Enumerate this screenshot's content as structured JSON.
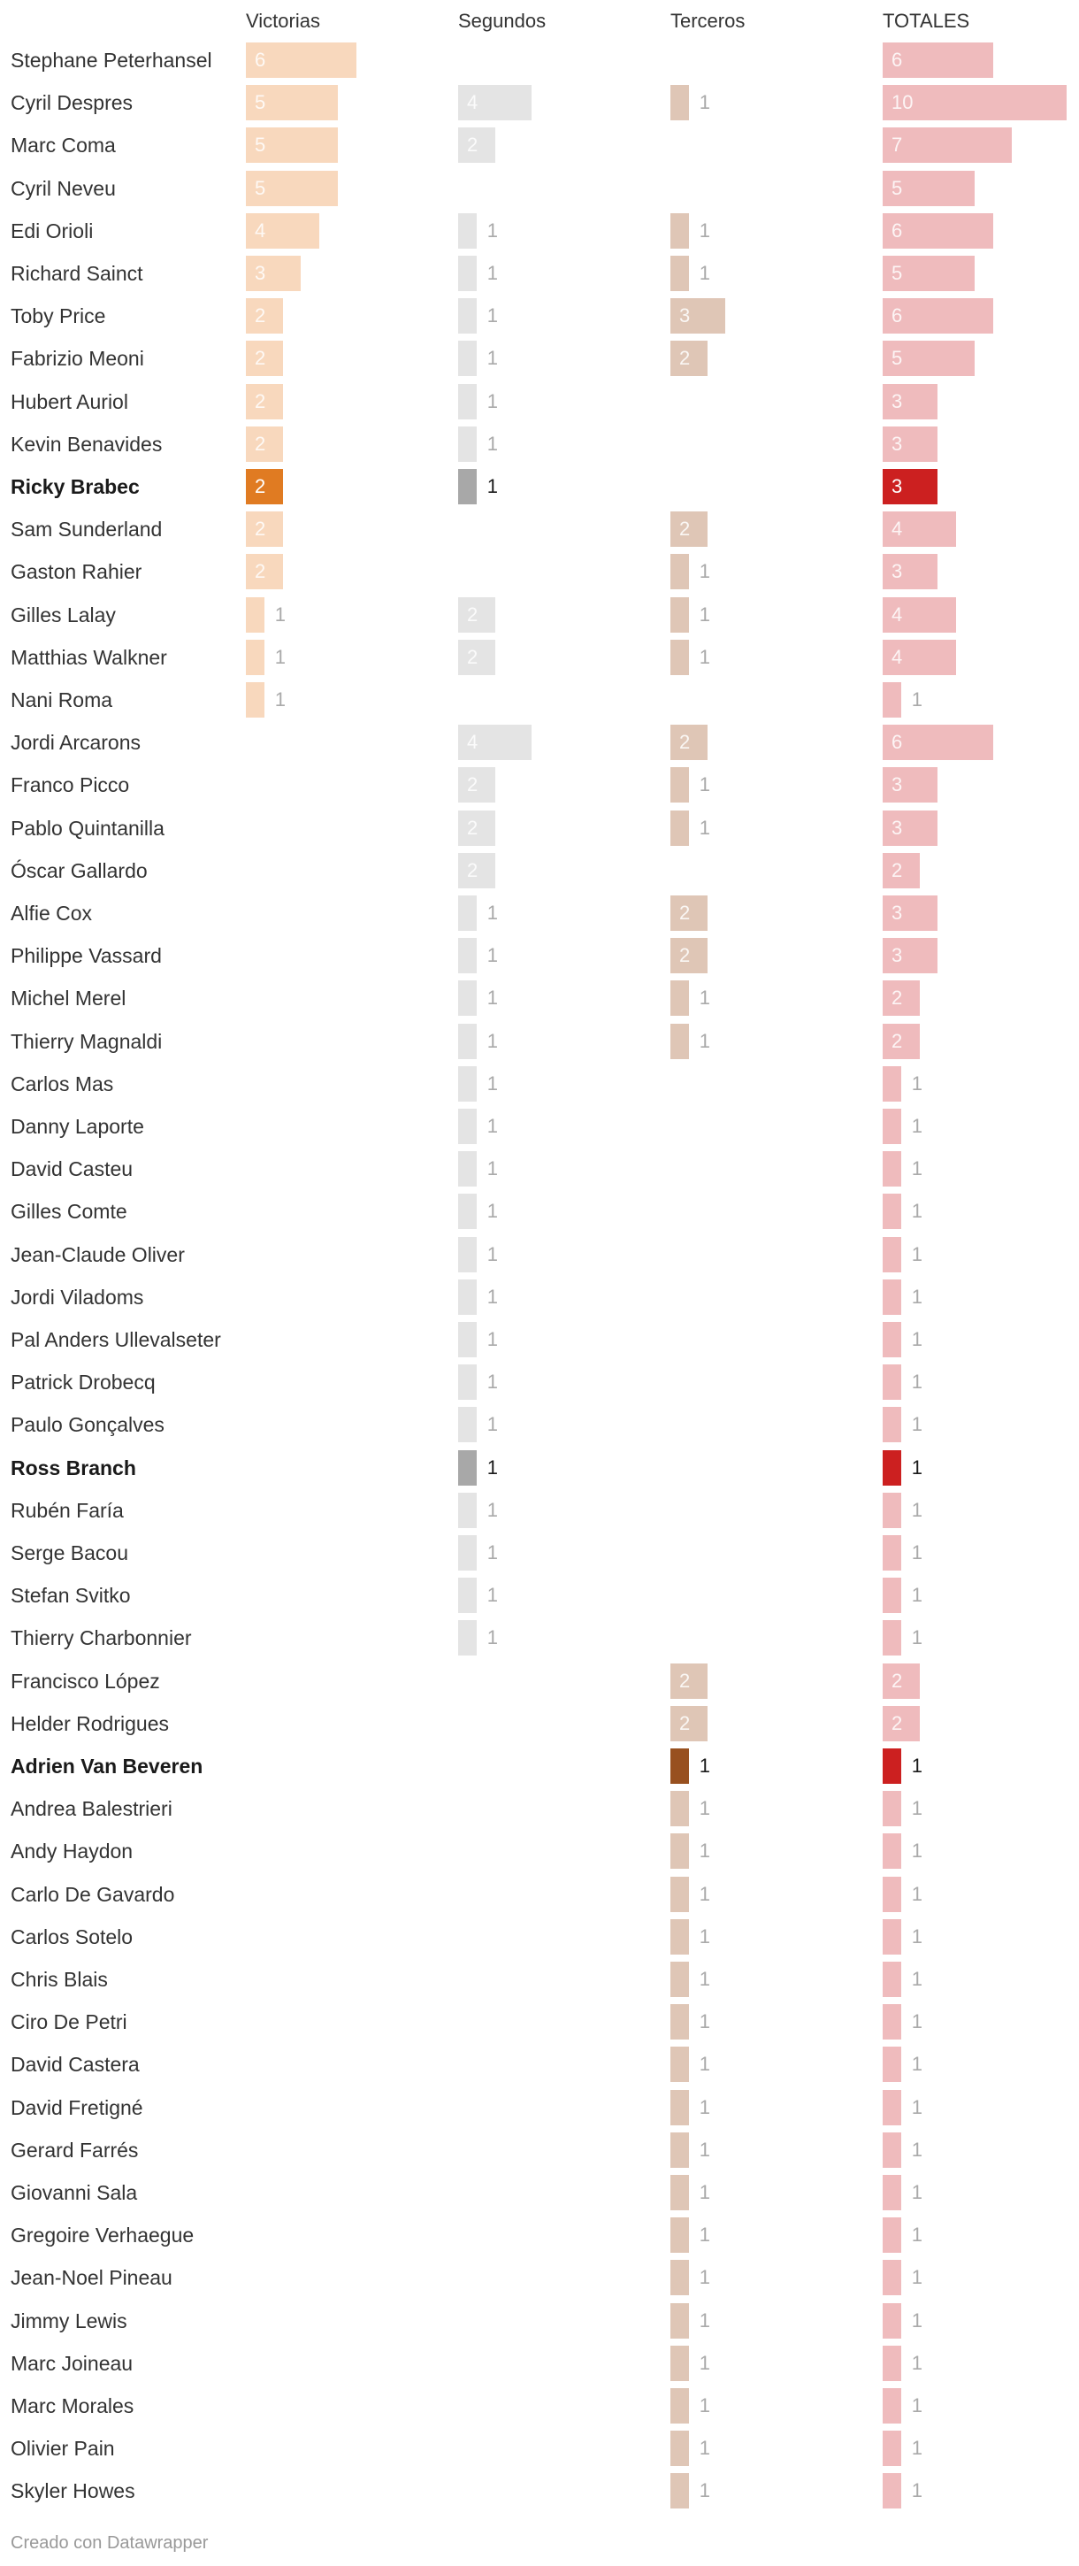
{
  "chart_data": {
    "type": "table",
    "title": "",
    "columns": [
      {
        "key": "v",
        "label": "Victorias",
        "color": "#f8d8bd",
        "highlight_color": "#e07b22"
      },
      {
        "key": "s",
        "label": "Segundos",
        "color": "#e4e4e4",
        "highlight_color": "#a8a8a8"
      },
      {
        "key": "t",
        "label": "Terceros",
        "color": "#dfc6b6",
        "highlight_color": "#98501f"
      },
      {
        "key": "total",
        "label": "TOTALES",
        "color": "#efbbbd",
        "highlight_color": "#cc2020"
      }
    ],
    "unit_max": 10,
    "rows": [
      {
        "name": "Stephane Peterhansel",
        "v": 6,
        "s": null,
        "t": null,
        "total": 6,
        "highlight": false
      },
      {
        "name": "Cyril Despres",
        "v": 5,
        "s": 4,
        "t": 1,
        "total": 10,
        "highlight": false
      },
      {
        "name": "Marc Coma",
        "v": 5,
        "s": 2,
        "t": null,
        "total": 7,
        "highlight": false
      },
      {
        "name": "Cyril Neveu",
        "v": 5,
        "s": null,
        "t": null,
        "total": 5,
        "highlight": false
      },
      {
        "name": "Edi Orioli",
        "v": 4,
        "s": 1,
        "t": 1,
        "total": 6,
        "highlight": false
      },
      {
        "name": "Richard Sainct",
        "v": 3,
        "s": 1,
        "t": 1,
        "total": 5,
        "highlight": false
      },
      {
        "name": "Toby Price",
        "v": 2,
        "s": 1,
        "t": 3,
        "total": 6,
        "highlight": false
      },
      {
        "name": "Fabrizio Meoni",
        "v": 2,
        "s": 1,
        "t": 2,
        "total": 5,
        "highlight": false
      },
      {
        "name": "Hubert Auriol",
        "v": 2,
        "s": 1,
        "t": null,
        "total": 3,
        "highlight": false
      },
      {
        "name": "Kevin Benavides",
        "v": 2,
        "s": 1,
        "t": null,
        "total": 3,
        "highlight": false
      },
      {
        "name": "Ricky Brabec",
        "v": 2,
        "s": 1,
        "t": null,
        "total": 3,
        "highlight": true
      },
      {
        "name": "Sam Sunderland",
        "v": 2,
        "s": null,
        "t": 2,
        "total": 4,
        "highlight": false
      },
      {
        "name": "Gaston Rahier",
        "v": 2,
        "s": null,
        "t": 1,
        "total": 3,
        "highlight": false
      },
      {
        "name": "Gilles Lalay",
        "v": 1,
        "s": 2,
        "t": 1,
        "total": 4,
        "highlight": false
      },
      {
        "name": "Matthias Walkner",
        "v": 1,
        "s": 2,
        "t": 1,
        "total": 4,
        "highlight": false
      },
      {
        "name": "Nani Roma",
        "v": 1,
        "s": null,
        "t": null,
        "total": 1,
        "highlight": false
      },
      {
        "name": "Jordi Arcarons",
        "v": null,
        "s": 4,
        "t": 2,
        "total": 6,
        "highlight": false
      },
      {
        "name": "Franco Picco",
        "v": null,
        "s": 2,
        "t": 1,
        "total": 3,
        "highlight": false
      },
      {
        "name": "Pablo Quintanilla",
        "v": null,
        "s": 2,
        "t": 1,
        "total": 3,
        "highlight": false
      },
      {
        "name": "Óscar Gallardo",
        "v": null,
        "s": 2,
        "t": null,
        "total": 2,
        "highlight": false
      },
      {
        "name": "Alfie Cox",
        "v": null,
        "s": 1,
        "t": 2,
        "total": 3,
        "highlight": false
      },
      {
        "name": "Philippe Vassard",
        "v": null,
        "s": 1,
        "t": 2,
        "total": 3,
        "highlight": false
      },
      {
        "name": "Michel Merel",
        "v": null,
        "s": 1,
        "t": 1,
        "total": 2,
        "highlight": false
      },
      {
        "name": "Thierry Magnaldi",
        "v": null,
        "s": 1,
        "t": 1,
        "total": 2,
        "highlight": false
      },
      {
        "name": "Carlos Mas",
        "v": null,
        "s": 1,
        "t": null,
        "total": 1,
        "highlight": false
      },
      {
        "name": "Danny Laporte",
        "v": null,
        "s": 1,
        "t": null,
        "total": 1,
        "highlight": false
      },
      {
        "name": "David Casteu",
        "v": null,
        "s": 1,
        "t": null,
        "total": 1,
        "highlight": false
      },
      {
        "name": "Gilles Comte",
        "v": null,
        "s": 1,
        "t": null,
        "total": 1,
        "highlight": false
      },
      {
        "name": "Jean-Claude Oliver",
        "v": null,
        "s": 1,
        "t": null,
        "total": 1,
        "highlight": false
      },
      {
        "name": "Jordi Viladoms",
        "v": null,
        "s": 1,
        "t": null,
        "total": 1,
        "highlight": false
      },
      {
        "name": "Pal Anders Ullevalseter",
        "v": null,
        "s": 1,
        "t": null,
        "total": 1,
        "highlight": false
      },
      {
        "name": "Patrick Drobecq",
        "v": null,
        "s": 1,
        "t": null,
        "total": 1,
        "highlight": false
      },
      {
        "name": "Paulo Gonçalves",
        "v": null,
        "s": 1,
        "t": null,
        "total": 1,
        "highlight": false
      },
      {
        "name": "Ross Branch",
        "v": null,
        "s": 1,
        "t": null,
        "total": 1,
        "highlight": true
      },
      {
        "name": "Rubén Faría",
        "v": null,
        "s": 1,
        "t": null,
        "total": 1,
        "highlight": false
      },
      {
        "name": "Serge Bacou",
        "v": null,
        "s": 1,
        "t": null,
        "total": 1,
        "highlight": false
      },
      {
        "name": "Stefan Svitko",
        "v": null,
        "s": 1,
        "t": null,
        "total": 1,
        "highlight": false
      },
      {
        "name": "Thierry Charbonnier",
        "v": null,
        "s": 1,
        "t": null,
        "total": 1,
        "highlight": false
      },
      {
        "name": "Francisco López",
        "v": null,
        "s": null,
        "t": 2,
        "total": 2,
        "highlight": false
      },
      {
        "name": "Helder Rodrigues",
        "v": null,
        "s": null,
        "t": 2,
        "total": 2,
        "highlight": false
      },
      {
        "name": "Adrien Van Beveren",
        "v": null,
        "s": null,
        "t": 1,
        "total": 1,
        "highlight": true
      },
      {
        "name": "Andrea Balestrieri",
        "v": null,
        "s": null,
        "t": 1,
        "total": 1,
        "highlight": false
      },
      {
        "name": "Andy Haydon",
        "v": null,
        "s": null,
        "t": 1,
        "total": 1,
        "highlight": false
      },
      {
        "name": "Carlo De Gavardo",
        "v": null,
        "s": null,
        "t": 1,
        "total": 1,
        "highlight": false
      },
      {
        "name": "Carlos Sotelo",
        "v": null,
        "s": null,
        "t": 1,
        "total": 1,
        "highlight": false
      },
      {
        "name": "Chris Blais",
        "v": null,
        "s": null,
        "t": 1,
        "total": 1,
        "highlight": false
      },
      {
        "name": "Ciro De Petri",
        "v": null,
        "s": null,
        "t": 1,
        "total": 1,
        "highlight": false
      },
      {
        "name": "David Castera",
        "v": null,
        "s": null,
        "t": 1,
        "total": 1,
        "highlight": false
      },
      {
        "name": "David Fretigné",
        "v": null,
        "s": null,
        "t": 1,
        "total": 1,
        "highlight": false
      },
      {
        "name": "Gerard Farrés",
        "v": null,
        "s": null,
        "t": 1,
        "total": 1,
        "highlight": false
      },
      {
        "name": "Giovanni Sala",
        "v": null,
        "s": null,
        "t": 1,
        "total": 1,
        "highlight": false
      },
      {
        "name": "Gregoire Verhaegue",
        "v": null,
        "s": null,
        "t": 1,
        "total": 1,
        "highlight": false
      },
      {
        "name": "Jean-Noel Pineau",
        "v": null,
        "s": null,
        "t": 1,
        "total": 1,
        "highlight": false
      },
      {
        "name": "Jimmy Lewis",
        "v": null,
        "s": null,
        "t": 1,
        "total": 1,
        "highlight": false
      },
      {
        "name": "Marc Joineau",
        "v": null,
        "s": null,
        "t": 1,
        "total": 1,
        "highlight": false
      },
      {
        "name": "Marc Morales",
        "v": null,
        "s": null,
        "t": 1,
        "total": 1,
        "highlight": false
      },
      {
        "name": "Olivier Pain",
        "v": null,
        "s": null,
        "t": 1,
        "total": 1,
        "highlight": false
      },
      {
        "name": "Skyler Howes",
        "v": null,
        "s": null,
        "t": 1,
        "total": 1,
        "highlight": false
      }
    ]
  },
  "footer": {
    "credit": "Creado con Datawrapper"
  }
}
